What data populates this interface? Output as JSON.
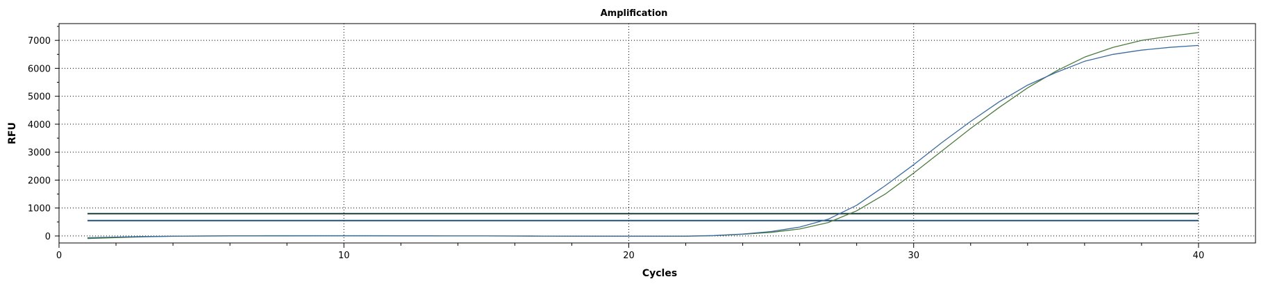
{
  "chart_data": {
    "type": "line",
    "title": "Amplification",
    "xlabel": "Cycles",
    "ylabel": "RFU",
    "xlim": [
      0,
      42
    ],
    "ylim": [
      -250,
      7600
    ],
    "xticks": [
      0,
      10,
      20,
      30,
      40
    ],
    "yticks": [
      0,
      1000,
      2000,
      3000,
      4000,
      5000,
      6000,
      7000
    ],
    "grid": true,
    "series": [
      {
        "color": "#4a7a3a",
        "x": [
          1,
          2,
          3,
          4,
          5,
          6,
          7,
          8,
          9,
          10,
          11,
          12,
          13,
          14,
          15,
          16,
          17,
          18,
          19,
          20,
          21,
          22,
          23,
          24,
          25,
          26,
          27,
          28,
          29,
          30,
          31,
          32,
          33,
          34,
          35,
          36,
          37,
          38,
          39,
          40
        ],
        "y": [
          -90,
          -60,
          -30,
          -10,
          0,
          5,
          8,
          10,
          12,
          12,
          10,
          8,
          5,
          2,
          0,
          -2,
          -4,
          -6,
          -8,
          -10,
          -10,
          -8,
          10,
          60,
          130,
          250,
          480,
          900,
          1500,
          2250,
          3050,
          3850,
          4600,
          5300,
          5900,
          6400,
          6750,
          7000,
          7150,
          7280
        ]
      },
      {
        "color": "#3a6aa0",
        "x": [
          1,
          2,
          3,
          4,
          5,
          6,
          7,
          8,
          9,
          10,
          11,
          12,
          13,
          14,
          15,
          16,
          17,
          18,
          19,
          20,
          21,
          22,
          23,
          24,
          25,
          26,
          27,
          28,
          29,
          30,
          31,
          32,
          33,
          34,
          35,
          36,
          37,
          38,
          39,
          40
        ],
        "y": [
          -60,
          -40,
          -20,
          -10,
          -5,
          0,
          2,
          4,
          6,
          6,
          5,
          4,
          3,
          2,
          0,
          -2,
          -4,
          -6,
          -8,
          -10,
          -8,
          -5,
          15,
          70,
          160,
          320,
          600,
          1100,
          1800,
          2550,
          3350,
          4100,
          4800,
          5400,
          5850,
          6250,
          6500,
          6650,
          6750,
          6820
        ]
      }
    ],
    "thresholds": [
      {
        "value": 800,
        "color": "#1a3a3a",
        "x_start": 1,
        "x_end": 40
      },
      {
        "value": 550,
        "color": "#1f4f7a",
        "x_start": 1,
        "x_end": 40
      }
    ]
  }
}
